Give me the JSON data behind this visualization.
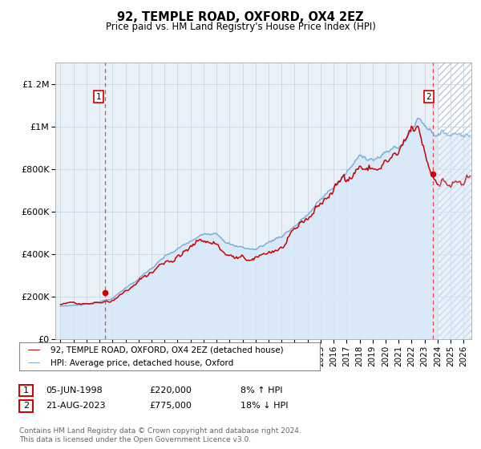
{
  "title": "92, TEMPLE ROAD, OXFORD, OX4 2EZ",
  "subtitle": "Price paid vs. HM Land Registry's House Price Index (HPI)",
  "legend_line1": "92, TEMPLE ROAD, OXFORD, OX4 2EZ (detached house)",
  "legend_line2": "HPI: Average price, detached house, Oxford",
  "annotation1_date": "05-JUN-1998",
  "annotation1_price": "£220,000",
  "annotation1_hpi": "8% ↑ HPI",
  "annotation2_date": "21-AUG-2023",
  "annotation2_price": "£775,000",
  "annotation2_hpi": "18% ↓ HPI",
  "footer": "Contains HM Land Registry data © Crown copyright and database right 2024.\nThis data is licensed under the Open Government Licence v3.0.",
  "price_color": "#cc0000",
  "hpi_color": "#7aaddc",
  "hpi_fill_color": "#d8e8f8",
  "background_color": "#e8f0f8",
  "hatch_color": "#b8c8d8",
  "ylim_min": 0,
  "ylim_max": 1300000,
  "yticks": [
    0,
    200000,
    400000,
    600000,
    800000,
    1000000,
    1200000
  ],
  "ytick_labels": [
    "£0",
    "£200K",
    "£400K",
    "£600K",
    "£800K",
    "£1M",
    "£1.2M"
  ],
  "sale1_year": 1998.43,
  "sale1_price": 220000,
  "sale2_year": 2023.63,
  "sale2_price": 775000,
  "future_cutoff": 2024.08,
  "grid_color": "#c8d4e0",
  "vline_color": "#ee4444"
}
